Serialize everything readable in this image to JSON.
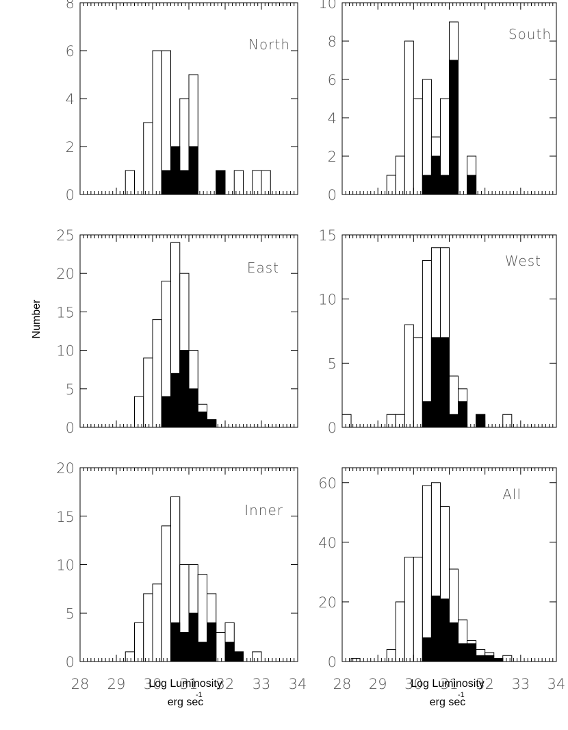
{
  "figure": {
    "ylabel": "Number",
    "xlabel_main": "Log Luminosity",
    "xlabel_unit": "erg sec",
    "xlabel_exponent": "-1"
  },
  "chart_data": [
    {
      "type": "bar",
      "panel": "north",
      "label": "North",
      "xlim": [
        28,
        34
      ],
      "ylim": [
        0,
        8
      ],
      "yticks": [
        0,
        2,
        4,
        6,
        8
      ],
      "xticks": [
        28,
        29,
        30,
        31,
        32,
        33,
        34
      ],
      "bin_width": 0.25,
      "series": [
        {
          "name": "all",
          "style": "open",
          "bins": [
            [
              29.25,
              1
            ],
            [
              29.75,
              3
            ],
            [
              30.0,
              6
            ],
            [
              30.25,
              6
            ],
            [
              30.5,
              2
            ],
            [
              30.75,
              4
            ],
            [
              31.0,
              5
            ],
            [
              31.75,
              1
            ],
            [
              32.25,
              1
            ],
            [
              32.75,
              1
            ],
            [
              33.0,
              1
            ]
          ]
        },
        {
          "name": "subset",
          "style": "filled",
          "bins": [
            [
              30.25,
              1
            ],
            [
              30.5,
              2
            ],
            [
              30.75,
              1
            ],
            [
              31.0,
              2
            ],
            [
              31.75,
              1
            ]
          ]
        }
      ]
    },
    {
      "type": "bar",
      "panel": "south",
      "label": "South",
      "xlim": [
        28,
        34
      ],
      "ylim": [
        0,
        10
      ],
      "yticks": [
        0,
        2,
        4,
        6,
        8,
        10
      ],
      "xticks": [
        28,
        29,
        30,
        31,
        32,
        33,
        34
      ],
      "bin_width": 0.25,
      "series": [
        {
          "name": "all",
          "style": "open",
          "bins": [
            [
              29.25,
              1
            ],
            [
              29.5,
              2
            ],
            [
              29.75,
              8
            ],
            [
              30.0,
              5
            ],
            [
              30.25,
              6
            ],
            [
              30.5,
              3
            ],
            [
              30.75,
              5
            ],
            [
              31.0,
              9
            ],
            [
              31.5,
              2
            ]
          ]
        },
        {
          "name": "subset",
          "style": "filled",
          "bins": [
            [
              30.25,
              1
            ],
            [
              30.5,
              2
            ],
            [
              30.75,
              1
            ],
            [
              31.0,
              7
            ],
            [
              31.5,
              1
            ]
          ]
        }
      ]
    },
    {
      "type": "bar",
      "panel": "east",
      "label": "East",
      "xlim": [
        28,
        34
      ],
      "ylim": [
        0,
        25
      ],
      "yticks": [
        0,
        5,
        10,
        15,
        20,
        25
      ],
      "xticks": [
        28,
        29,
        30,
        31,
        32,
        33,
        34
      ],
      "bin_width": 0.25,
      "series": [
        {
          "name": "all",
          "style": "open",
          "bins": [
            [
              29.5,
              4
            ],
            [
              29.75,
              9
            ],
            [
              30.0,
              14
            ],
            [
              30.25,
              19
            ],
            [
              30.5,
              24
            ],
            [
              30.75,
              20
            ],
            [
              31.0,
              10
            ],
            [
              31.25,
              3
            ],
            [
              31.5,
              1
            ]
          ]
        },
        {
          "name": "subset",
          "style": "filled",
          "bins": [
            [
              30.25,
              4
            ],
            [
              30.5,
              7
            ],
            [
              30.75,
              10
            ],
            [
              31.0,
              5
            ],
            [
              31.25,
              2
            ],
            [
              31.5,
              1
            ]
          ]
        }
      ]
    },
    {
      "type": "bar",
      "panel": "west",
      "label": "West",
      "xlim": [
        28,
        34
      ],
      "ylim": [
        0,
        15
      ],
      "yticks": [
        0,
        5,
        10,
        15
      ],
      "xticks": [
        28,
        29,
        30,
        31,
        32,
        33,
        34
      ],
      "bin_width": 0.25,
      "series": [
        {
          "name": "all",
          "style": "open",
          "bins": [
            [
              28.0,
              1
            ],
            [
              29.25,
              1
            ],
            [
              29.5,
              1
            ],
            [
              29.75,
              8
            ],
            [
              30.0,
              7
            ],
            [
              30.25,
              13
            ],
            [
              30.5,
              14
            ],
            [
              30.75,
              14
            ],
            [
              31.0,
              4
            ],
            [
              31.25,
              3
            ],
            [
              31.75,
              1
            ],
            [
              32.5,
              1
            ]
          ]
        },
        {
          "name": "subset",
          "style": "filled",
          "bins": [
            [
              30.25,
              2
            ],
            [
              30.5,
              7
            ],
            [
              30.75,
              7
            ],
            [
              31.0,
              1
            ],
            [
              31.25,
              2
            ],
            [
              31.75,
              1
            ]
          ]
        }
      ]
    },
    {
      "type": "bar",
      "panel": "inner",
      "label": "Inner",
      "xlim": [
        28,
        34
      ],
      "ylim": [
        0,
        20
      ],
      "yticks": [
        0,
        5,
        10,
        15,
        20
      ],
      "xticks": [
        28,
        29,
        30,
        31,
        32,
        33,
        34
      ],
      "bin_width": 0.25,
      "series": [
        {
          "name": "all",
          "style": "open",
          "bins": [
            [
              29.25,
              1
            ],
            [
              29.5,
              4
            ],
            [
              29.75,
              7
            ],
            [
              30.0,
              8
            ],
            [
              30.25,
              14
            ],
            [
              30.5,
              17
            ],
            [
              30.75,
              10
            ],
            [
              31.0,
              10
            ],
            [
              31.25,
              9
            ],
            [
              31.5,
              7
            ],
            [
              31.75,
              3
            ],
            [
              32.0,
              4
            ],
            [
              32.25,
              1
            ],
            [
              32.75,
              1
            ]
          ]
        },
        {
          "name": "subset",
          "style": "filled",
          "bins": [
            [
              30.5,
              4
            ],
            [
              30.75,
              3
            ],
            [
              31.0,
              5
            ],
            [
              31.25,
              2
            ],
            [
              31.5,
              4
            ],
            [
              31.75,
              0
            ],
            [
              32.0,
              2
            ],
            [
              32.25,
              1
            ]
          ]
        }
      ]
    },
    {
      "type": "bar",
      "panel": "all",
      "label": "All",
      "xlim": [
        28,
        34
      ],
      "ylim": [
        0,
        65
      ],
      "yticks": [
        0,
        20,
        40,
        60
      ],
      "xticks": [
        28,
        29,
        30,
        31,
        32,
        33,
        34
      ],
      "bin_width": 0.25,
      "series": [
        {
          "name": "all",
          "style": "open",
          "bins": [
            [
              28.25,
              1
            ],
            [
              29.25,
              4
            ],
            [
              29.5,
              20
            ],
            [
              29.75,
              35
            ],
            [
              30.0,
              35
            ],
            [
              30.25,
              59
            ],
            [
              30.5,
              60
            ],
            [
              30.75,
              52
            ],
            [
              31.0,
              31
            ],
            [
              31.25,
              14
            ],
            [
              31.5,
              7
            ],
            [
              31.75,
              4
            ],
            [
              32.0,
              3
            ],
            [
              32.25,
              1
            ],
            [
              32.5,
              2
            ]
          ]
        },
        {
          "name": "subset",
          "style": "filled",
          "bins": [
            [
              30.25,
              8
            ],
            [
              30.5,
              22
            ],
            [
              30.75,
              21
            ],
            [
              31.0,
              13
            ],
            [
              31.25,
              6
            ],
            [
              31.5,
              6
            ],
            [
              31.75,
              2
            ],
            [
              32.0,
              2
            ],
            [
              32.25,
              1
            ]
          ]
        }
      ]
    }
  ]
}
